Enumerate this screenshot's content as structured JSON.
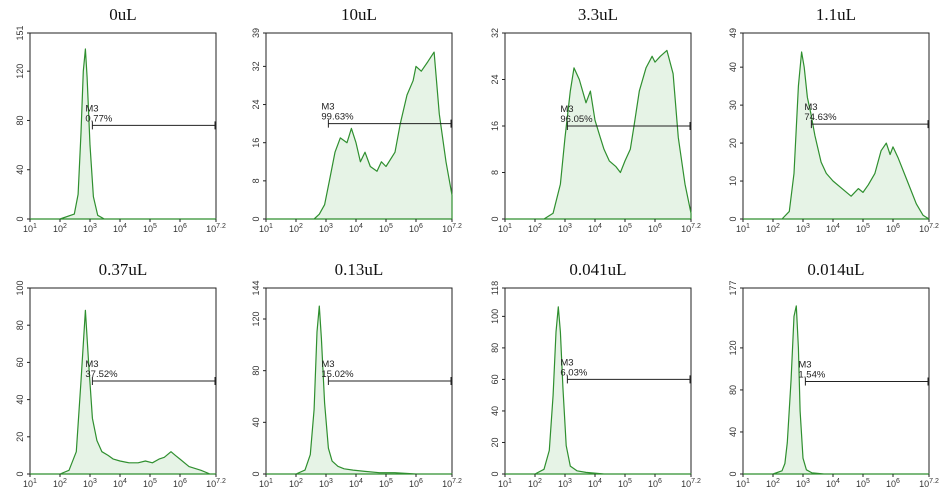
{
  "chart_data": [
    {
      "type": "area",
      "title": "0uL",
      "xscale": "log",
      "xlim": [
        10,
        15848932
      ],
      "xticks": [
        "10^1",
        "10^2",
        "10^3",
        "10^4",
        "10^5",
        "10^6",
        "10^7.2"
      ],
      "ylim": [
        0,
        151
      ],
      "yticks": [
        0,
        40,
        80,
        120,
        151
      ],
      "gate": {
        "label": "M3",
        "percent": "0.77%",
        "range": [
          1200,
          15848932
        ],
        "y": 76
      },
      "series": [
        {
          "x": [
            10,
            100,
            300,
            400,
            500,
            600,
            700,
            800,
            1000,
            1300,
            1800,
            3000,
            10000,
            100000,
            1000000,
            15848932
          ],
          "y": [
            0,
            0,
            4,
            20,
            70,
            120,
            138,
            115,
            60,
            18,
            3,
            0,
            0,
            0,
            0,
            0
          ]
        }
      ]
    },
    {
      "type": "area",
      "title": "10uL",
      "xscale": "log",
      "xlim": [
        10,
        15848932
      ],
      "xticks": [
        "10^1",
        "10^2",
        "10^3",
        "10^4",
        "10^5",
        "10^6",
        "10^7.2"
      ],
      "ylim": [
        0,
        39
      ],
      "yticks": [
        0,
        8,
        16,
        24,
        32,
        39
      ],
      "gate": {
        "label": "M3",
        "percent": "99.63%",
        "range": [
          1200,
          15848932
        ],
        "y": 20
      },
      "series": [
        {
          "x": [
            10,
            400,
            600,
            900,
            1300,
            2000,
            3000,
            5000,
            7000,
            10000,
            14000,
            20000,
            30000,
            50000,
            70000,
            100000,
            200000,
            300000,
            500000,
            800000,
            1000000,
            1500000,
            2500000,
            4000000,
            6000000,
            10000000,
            15848932
          ],
          "y": [
            0,
            0,
            1,
            3,
            8,
            14,
            17,
            16,
            19,
            16,
            12,
            14,
            11,
            10,
            12,
            11,
            14,
            20,
            26,
            29,
            32,
            31,
            33,
            35,
            22,
            12,
            5
          ]
        }
      ]
    },
    {
      "type": "area",
      "title": "3.3uL",
      "xscale": "log",
      "xlim": [
        10,
        15848932
      ],
      "xticks": [
        "10^1",
        "10^2",
        "10^3",
        "10^4",
        "10^5",
        "10^6",
        "10^7.2"
      ],
      "ylim": [
        0,
        32
      ],
      "yticks": [
        0,
        8,
        16,
        24,
        32
      ],
      "gate": {
        "label": "M3",
        "percent": "96.05%",
        "range": [
          1200,
          15848932
        ],
        "y": 16
      },
      "series": [
        {
          "x": [
            10,
            200,
            400,
            700,
            1000,
            1500,
            2000,
            3000,
            5000,
            7000,
            10000,
            15000,
            20000,
            30000,
            50000,
            70000,
            100000,
            150000,
            200000,
            300000,
            500000,
            800000,
            1000000,
            1500000,
            2500000,
            4000000,
            6000000,
            10000000,
            15848932
          ],
          "y": [
            0,
            0,
            1,
            6,
            14,
            22,
            26,
            24,
            20,
            22,
            17,
            14,
            12,
            10,
            9,
            8,
            10,
            12,
            16,
            22,
            26,
            28,
            27,
            28,
            29,
            25,
            14,
            6,
            1
          ]
        }
      ]
    },
    {
      "type": "area",
      "title": "1.1uL",
      "xscale": "log",
      "xlim": [
        10,
        15848932
      ],
      "xticks": [
        "10^1",
        "10^2",
        "10^3",
        "10^4",
        "10^5",
        "10^6",
        "10^7.2"
      ],
      "ylim": [
        0,
        49
      ],
      "yticks": [
        0,
        10,
        20,
        30,
        40,
        49
      ],
      "gate": {
        "label": "M3",
        "percent": "74.63%",
        "range": [
          1900,
          15848932
        ],
        "y": 25
      },
      "series": [
        {
          "x": [
            10,
            200,
            350,
            500,
            700,
            900,
            1100,
            1400,
            1800,
            2500,
            4000,
            6000,
            10000,
            20000,
            40000,
            70000,
            100000,
            150000,
            250000,
            400000,
            600000,
            800000,
            1000000,
            1500000,
            3000000,
            6000000,
            10000000,
            15848932
          ],
          "y": [
            0,
            0,
            2,
            12,
            35,
            44,
            40,
            32,
            28,
            22,
            15,
            12,
            10,
            8,
            6,
            8,
            7,
            9,
            12,
            18,
            20,
            17,
            19,
            16,
            10,
            4,
            1,
            0
          ]
        }
      ]
    },
    {
      "type": "area",
      "title": "0.37uL",
      "xscale": "log",
      "xlim": [
        10,
        15848932
      ],
      "xticks": [
        "10^1",
        "10^2",
        "10^3",
        "10^4",
        "10^5",
        "10^6",
        "10^7.2"
      ],
      "ylim": [
        0,
        100
      ],
      "yticks": [
        0,
        20,
        40,
        60,
        80,
        100
      ],
      "gate": {
        "label": "M3",
        "percent": "37.52%",
        "range": [
          1200,
          15848932
        ],
        "y": 50
      },
      "series": [
        {
          "x": [
            10,
            100,
            200,
            350,
            500,
            700,
            900,
            1200,
            1700,
            2500,
            4000,
            6000,
            10000,
            20000,
            40000,
            70000,
            120000,
            200000,
            300000,
            500000,
            700000,
            1000000,
            2000000,
            5000000,
            10000000,
            15848932
          ],
          "y": [
            0,
            0,
            2,
            12,
            50,
            88,
            60,
            30,
            18,
            12,
            10,
            8,
            7,
            6,
            6,
            7,
            6,
            8,
            9,
            12,
            10,
            8,
            4,
            2,
            0,
            0
          ]
        }
      ]
    },
    {
      "type": "area",
      "title": "0.13uL",
      "xscale": "log",
      "xlim": [
        10,
        15848932
      ],
      "xticks": [
        "10^1",
        "10^2",
        "10^3",
        "10^4",
        "10^5",
        "10^6",
        "10^7.2"
      ],
      "ylim": [
        0,
        144
      ],
      "yticks": [
        0,
        40,
        80,
        120,
        144
      ],
      "gate": {
        "label": "M3",
        "percent": "15.02%",
        "range": [
          1200,
          15848932
        ],
        "y": 72
      },
      "series": [
        {
          "x": [
            10,
            100,
            200,
            300,
            400,
            500,
            600,
            700,
            900,
            1200,
            1600,
            2500,
            4000,
            8000,
            20000,
            60000,
            200000,
            1000000,
            3000000,
            15848932
          ],
          "y": [
            0,
            0,
            3,
            15,
            50,
            110,
            130,
            105,
            55,
            20,
            10,
            6,
            4,
            3,
            2,
            1,
            1,
            0,
            0,
            0
          ]
        }
      ]
    },
    {
      "type": "area",
      "title": "0.041uL",
      "xscale": "log",
      "xlim": [
        10,
        15848932
      ],
      "xticks": [
        "10^1",
        "10^2",
        "10^3",
        "10^4",
        "10^5",
        "10^6",
        "10^7.2"
      ],
      "ylim": [
        0,
        118
      ],
      "yticks": [
        0,
        20,
        40,
        60,
        80,
        100,
        118
      ],
      "gate": {
        "label": "M3",
        "percent": "6.03%",
        "range": [
          1200,
          15848932
        ],
        "y": 60
      },
      "series": [
        {
          "x": [
            10,
            100,
            200,
            300,
            400,
            500,
            600,
            700,
            850,
            1100,
            1500,
            2500,
            5000,
            20000,
            100000,
            1000000,
            15848932
          ],
          "y": [
            0,
            0,
            3,
            15,
            50,
            90,
            106,
            90,
            55,
            18,
            5,
            2,
            1,
            0,
            0,
            0,
            0
          ]
        }
      ]
    },
    {
      "type": "area",
      "title": "0.014uL",
      "xscale": "log",
      "xlim": [
        10,
        15848932
      ],
      "xticks": [
        "10^1",
        "10^2",
        "10^3",
        "10^4",
        "10^5",
        "10^6",
        "10^7.2"
      ],
      "ylim": [
        0,
        177
      ],
      "yticks": [
        0,
        40,
        80,
        120,
        177
      ],
      "gate": {
        "label": "M3",
        "percent": "1.54%",
        "range": [
          1200,
          15848932
        ],
        "y": 88
      },
      "series": [
        {
          "x": [
            10,
            100,
            200,
            250,
            300,
            400,
            500,
            600,
            700,
            800,
            1000,
            1300,
            2000,
            5000,
            20000,
            100000,
            1000000,
            15848932
          ],
          "y": [
            0,
            0,
            3,
            10,
            30,
            90,
            150,
            160,
            120,
            60,
            15,
            4,
            1,
            0,
            0,
            0,
            0,
            0
          ]
        }
      ]
    }
  ]
}
